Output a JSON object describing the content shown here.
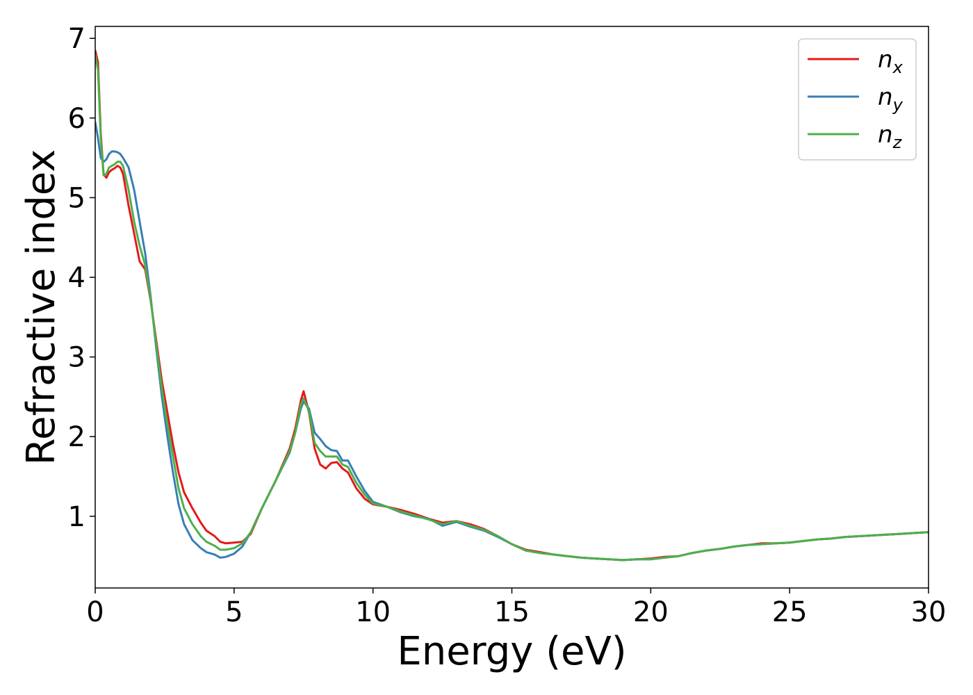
{
  "chart_data": {
    "type": "line",
    "xlabel": "Energy (eV)",
    "ylabel": "Refractive index",
    "xlim": [
      0,
      30
    ],
    "ylim": [
      0.1,
      7.15
    ],
    "xticks": [
      0,
      5,
      10,
      15,
      20,
      25,
      30
    ],
    "yticks": [
      1,
      2,
      3,
      4,
      5,
      6,
      7
    ],
    "grid": false,
    "legend_position": "top-right",
    "series": [
      {
        "name": "n",
        "subscript": "x",
        "color": "#e41a1c",
        "x": [
          0,
          0.1,
          0.2,
          0.3,
          0.4,
          0.5,
          0.6,
          0.7,
          0.8,
          0.9,
          1.0,
          1.2,
          1.4,
          1.6,
          1.8,
          2.0,
          2.2,
          2.4,
          2.6,
          2.8,
          3.0,
          3.2,
          3.5,
          3.8,
          4.0,
          4.3,
          4.5,
          4.7,
          5.0,
          5.3,
          5.6,
          6.0,
          6.5,
          7.0,
          7.2,
          7.4,
          7.5,
          7.7,
          7.9,
          8.1,
          8.3,
          8.5,
          8.7,
          8.9,
          9.1,
          9.4,
          9.7,
          10.0,
          10.5,
          11.0,
          11.5,
          12.0,
          12.5,
          13.0,
          13.5,
          14.0,
          14.5,
          15.0,
          15.5,
          16.0,
          16.5,
          17.0,
          17.5,
          18.0,
          18.5,
          19.0,
          19.5,
          20.0,
          20.5,
          21.0,
          21.5,
          22.0,
          22.5,
          23.0,
          23.5,
          24.0,
          24.5,
          25.0,
          25.5,
          26.0,
          26.5,
          27.0,
          27.5,
          28.0,
          28.5,
          29.0,
          29.5,
          30.0
        ],
        "y": [
          6.85,
          6.7,
          5.8,
          5.3,
          5.25,
          5.32,
          5.35,
          5.37,
          5.4,
          5.38,
          5.3,
          4.9,
          4.55,
          4.2,
          4.1,
          3.7,
          3.2,
          2.7,
          2.3,
          1.9,
          1.55,
          1.3,
          1.1,
          0.92,
          0.82,
          0.75,
          0.68,
          0.66,
          0.67,
          0.68,
          0.78,
          1.1,
          1.45,
          1.85,
          2.1,
          2.45,
          2.57,
          2.3,
          1.85,
          1.65,
          1.6,
          1.67,
          1.68,
          1.6,
          1.55,
          1.35,
          1.22,
          1.15,
          1.12,
          1.08,
          1.03,
          0.97,
          0.92,
          0.94,
          0.9,
          0.84,
          0.75,
          0.65,
          0.58,
          0.55,
          0.52,
          0.5,
          0.48,
          0.47,
          0.46,
          0.45,
          0.46,
          0.47,
          0.49,
          0.5,
          0.54,
          0.57,
          0.59,
          0.62,
          0.64,
          0.66,
          0.66,
          0.67,
          0.69,
          0.71,
          0.72,
          0.74,
          0.75,
          0.76,
          0.77,
          0.78,
          0.79,
          0.8
        ]
      },
      {
        "name": "n",
        "subscript": "y",
        "color": "#377eb8",
        "x": [
          0,
          0.1,
          0.2,
          0.3,
          0.4,
          0.5,
          0.6,
          0.7,
          0.8,
          0.9,
          1.0,
          1.2,
          1.4,
          1.6,
          1.8,
          2.0,
          2.2,
          2.4,
          2.6,
          2.8,
          3.0,
          3.2,
          3.5,
          3.8,
          4.0,
          4.3,
          4.5,
          4.7,
          5.0,
          5.3,
          5.6,
          6.0,
          6.5,
          7.0,
          7.2,
          7.4,
          7.5,
          7.7,
          7.9,
          8.1,
          8.3,
          8.5,
          8.7,
          8.9,
          9.1,
          9.4,
          9.7,
          10.0,
          10.5,
          11.0,
          11.5,
          12.0,
          12.5,
          13.0,
          13.5,
          14.0,
          14.5,
          15.0,
          15.5,
          16.0,
          16.5,
          17.0,
          17.5,
          18.0,
          18.5,
          19.0,
          19.5,
          20.0,
          20.5,
          21.0,
          21.5,
          22.0,
          22.5,
          23.0,
          23.5,
          24.0,
          24.5,
          25.0,
          25.5,
          26.0,
          26.5,
          27.0,
          27.5,
          28.0,
          28.5,
          29.0,
          29.5,
          30.0
        ],
        "y": [
          5.95,
          5.75,
          5.5,
          5.45,
          5.48,
          5.55,
          5.58,
          5.58,
          5.57,
          5.55,
          5.5,
          5.38,
          5.1,
          4.7,
          4.3,
          3.75,
          3.1,
          2.5,
          2.0,
          1.55,
          1.15,
          0.9,
          0.7,
          0.6,
          0.55,
          0.52,
          0.48,
          0.49,
          0.53,
          0.62,
          0.8,
          1.1,
          1.45,
          1.8,
          2.05,
          2.35,
          2.44,
          2.35,
          2.05,
          1.97,
          1.88,
          1.83,
          1.82,
          1.7,
          1.7,
          1.5,
          1.32,
          1.18,
          1.12,
          1.05,
          1.0,
          0.97,
          0.88,
          0.93,
          0.87,
          0.82,
          0.74,
          0.65,
          0.57,
          0.54,
          0.52,
          0.5,
          0.48,
          0.47,
          0.46,
          0.45,
          0.46,
          0.46,
          0.48,
          0.5,
          0.54,
          0.57,
          0.59,
          0.62,
          0.64,
          0.65,
          0.66,
          0.67,
          0.69,
          0.71,
          0.72,
          0.74,
          0.75,
          0.76,
          0.77,
          0.78,
          0.79,
          0.8
        ]
      },
      {
        "name": "n",
        "subscript": "z",
        "color": "#4daf4a",
        "x": [
          0,
          0.1,
          0.2,
          0.3,
          0.4,
          0.5,
          0.6,
          0.7,
          0.8,
          0.9,
          1.0,
          1.2,
          1.4,
          1.6,
          1.8,
          2.0,
          2.2,
          2.4,
          2.6,
          2.8,
          3.0,
          3.2,
          3.5,
          3.8,
          4.0,
          4.3,
          4.5,
          4.7,
          5.0,
          5.3,
          5.6,
          6.0,
          6.5,
          7.0,
          7.2,
          7.4,
          7.5,
          7.7,
          7.9,
          8.1,
          8.3,
          8.5,
          8.7,
          8.9,
          9.1,
          9.4,
          9.7,
          10.0,
          10.5,
          11.0,
          11.5,
          12.0,
          12.5,
          13.0,
          13.5,
          14.0,
          14.5,
          15.0,
          15.5,
          16.0,
          16.5,
          17.0,
          17.5,
          18.0,
          18.5,
          19.0,
          19.5,
          20.0,
          20.5,
          21.0,
          21.5,
          22.0,
          22.5,
          23.0,
          23.5,
          24.0,
          24.5,
          25.0,
          25.5,
          26.0,
          26.5,
          27.0,
          27.5,
          28.0,
          28.5,
          29.0,
          29.5,
          30.0
        ],
        "y": [
          6.8,
          6.6,
          5.75,
          5.28,
          5.3,
          5.38,
          5.4,
          5.42,
          5.45,
          5.45,
          5.4,
          5.1,
          4.7,
          4.4,
          4.15,
          3.72,
          3.15,
          2.6,
          2.15,
          1.75,
          1.35,
          1.1,
          0.9,
          0.75,
          0.68,
          0.63,
          0.58,
          0.58,
          0.6,
          0.66,
          0.8,
          1.1,
          1.45,
          1.82,
          2.05,
          2.4,
          2.48,
          2.32,
          1.92,
          1.82,
          1.75,
          1.75,
          1.75,
          1.65,
          1.62,
          1.42,
          1.27,
          1.16,
          1.12,
          1.06,
          1.01,
          0.96,
          0.9,
          0.94,
          0.88,
          0.83,
          0.75,
          0.65,
          0.57,
          0.54,
          0.52,
          0.5,
          0.48,
          0.47,
          0.46,
          0.45,
          0.46,
          0.46,
          0.48,
          0.5,
          0.54,
          0.57,
          0.59,
          0.62,
          0.64,
          0.65,
          0.66,
          0.67,
          0.69,
          0.71,
          0.72,
          0.74,
          0.75,
          0.76,
          0.77,
          0.78,
          0.79,
          0.8
        ]
      }
    ]
  }
}
